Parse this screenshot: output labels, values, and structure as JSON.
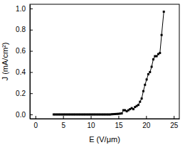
{
  "chart_data": {
    "type": "line",
    "x_label": "E (V/μm)",
    "y_label": "J (mA/cm²)",
    "x": [
      3.3,
      3.6,
      3.9,
      4.2,
      4.5,
      4.8,
      5.1,
      5.4,
      5.7,
      6.0,
      6.3,
      6.6,
      6.9,
      7.2,
      7.5,
      7.8,
      8.1,
      8.4,
      8.7,
      9.0,
      9.3,
      9.6,
      9.9,
      10.2,
      10.5,
      10.8,
      11.1,
      11.4,
      11.7,
      12.0,
      12.3,
      12.6,
      12.9,
      13.2,
      13.5,
      13.8,
      14.1,
      14.4,
      14.7,
      15.0,
      15.3,
      15.6,
      15.9,
      16.2,
      16.5,
      16.8,
      17.1,
      17.4,
      17.7,
      18.0,
      18.3,
      18.6,
      18.9,
      19.2,
      19.5,
      19.8,
      20.1,
      20.4,
      20.7,
      21.0,
      21.3,
      21.6,
      21.9,
      22.2,
      22.5,
      22.8,
      23.2
    ],
    "series": [
      {
        "color": "#000000",
        "marker": "square",
        "line_style": "solid",
        "values": [
          0,
          0,
          0,
          0,
          0,
          0,
          0,
          0,
          0,
          0,
          0,
          0,
          0,
          0,
          0,
          0,
          0,
          0,
          0,
          0,
          0,
          0,
          0,
          0,
          0,
          0,
          0,
          0,
          0,
          0,
          0,
          0,
          0,
          0,
          0,
          0.002,
          0.003,
          0.004,
          0.005,
          0.006,
          0.008,
          0.01,
          0.04,
          0.04,
          0.03,
          0.04,
          0.05,
          0.06,
          0.05,
          0.07,
          0.08,
          0.09,
          0.12,
          0.15,
          0.22,
          0.28,
          0.33,
          0.38,
          0.4,
          0.45,
          0.52,
          0.55,
          0.55,
          0.57,
          0.58,
          0.75,
          0.97
        ]
      }
    ],
    "xlim": [
      -1,
      26
    ],
    "xticks": [
      0,
      5,
      10,
      15,
      20,
      25
    ],
    "ylim": [
      -0.04,
      1.04
    ],
    "yticks": [
      {
        "value": 0,
        "label": "0.0"
      },
      {
        "value": 0.2,
        "label": "0.2"
      },
      {
        "value": 0.4,
        "label": "0.4"
      },
      {
        "value": 0.6,
        "label": "0.6"
      },
      {
        "value": 0.8,
        "label": "0.8"
      },
      {
        "value": 1.0,
        "label": "1.0"
      }
    ]
  }
}
